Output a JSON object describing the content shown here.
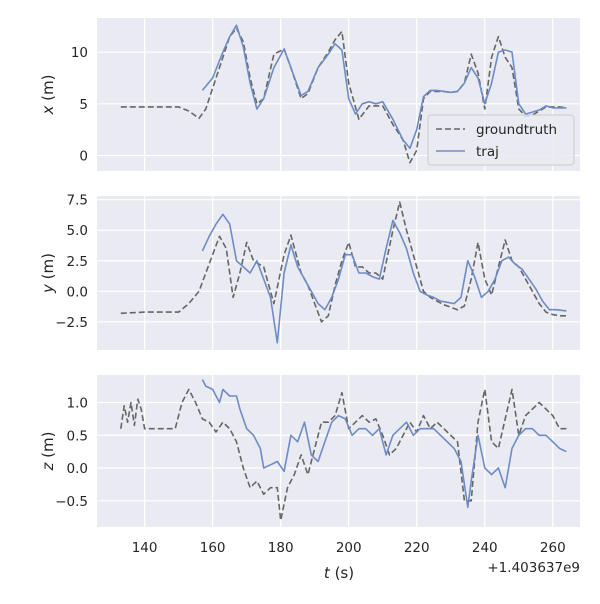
{
  "chart_data": {
    "type": "line",
    "xlabel": "t (s)",
    "x_offset_label": "+1.403637e9",
    "xlim": [
      126,
      268
    ],
    "x_ticks": [
      140,
      160,
      180,
      200,
      220,
      240,
      260
    ],
    "grid": true,
    "legend": {
      "placement": "lower-right",
      "panel": "x",
      "entries": [
        "groundtruth",
        "traj"
      ]
    },
    "colors": {
      "groundtruth": "#666666",
      "traj": "#6d8cc6",
      "panel_bg": "#eaeaf2",
      "grid": "#ffffff"
    },
    "panels": [
      {
        "ylabel": "x (m)",
        "ylim": [
          -1.5,
          13.3
        ],
        "y_ticks": [
          0,
          5,
          10
        ],
        "y_tick_labels": [
          "0",
          "5",
          "10"
        ],
        "series": [
          {
            "name": "groundtruth",
            "style": "dashed",
            "x": [
              133,
              140,
              150,
              153,
              156,
              158,
              160,
              163,
              165,
              167,
              169,
              171,
              173,
              175,
              178,
              181,
              183,
              186,
              188,
              191,
              194,
              196,
              198,
              200,
              203,
              206,
              210,
              213,
              216,
              218,
              220,
              222,
              224,
              226,
              228,
              230,
              232,
              234,
              236,
              238,
              240,
              242,
              244,
              246,
              248,
              250,
              252,
              254,
              256,
              258,
              260,
              262,
              264
            ],
            "y": [
              4.7,
              4.7,
              4.7,
              4.3,
              3.6,
              4.5,
              6.5,
              9.5,
              11.5,
              12.3,
              11,
              7.5,
              5,
              5.5,
              9.8,
              10.3,
              8.5,
              5.5,
              6,
              8.5,
              10,
              11.2,
              12,
              7,
              3.5,
              4.8,
              4.8,
              3,
              1.5,
              -0.7,
              0.5,
              5.5,
              6.2,
              6.2,
              6.2,
              6.1,
              6.2,
              7,
              9.8,
              8,
              4.5,
              9.5,
              11.5,
              9.5,
              8.5,
              4.5,
              3.8,
              3.9,
              4.3,
              4.7,
              4.7,
              4.7,
              4.6
            ]
          },
          {
            "name": "traj",
            "style": "solid",
            "x": [
              157,
              160,
              163,
              165,
              167,
              169,
              171,
              173,
              175,
              178,
              181,
              183,
              186,
              188,
              191,
              194,
              196,
              198,
              200,
              202,
              204,
              206,
              208,
              210,
              213,
              216,
              218,
              220,
              222,
              224,
              226,
              228,
              230,
              232,
              234,
              236,
              238,
              240,
              242,
              244,
              246,
              248,
              250,
              252,
              254,
              256,
              258,
              260,
              262,
              264
            ],
            "y": [
              6.3,
              7.5,
              10,
              11.5,
              12.6,
              10.5,
              7,
              4.5,
              5.5,
              8.5,
              10.3,
              8.5,
              5.8,
              6.2,
              8.5,
              9.8,
              10.8,
              10.2,
              5.5,
              4,
              5,
              5.2,
              5,
              5.2,
              3.5,
              1.5,
              0.7,
              2.5,
              5.7,
              6.3,
              6.3,
              6.2,
              6.1,
              6.2,
              7,
              8.5,
              7.5,
              5,
              7,
              10,
              10.2,
              10,
              5,
              4,
              4.2,
              4.4,
              4.8,
              4.6,
              4.6,
              4.6
            ]
          }
        ]
      },
      {
        "ylabel": "y (m)",
        "ylim": [
          -4.8,
          7.8
        ],
        "y_ticks": [
          -2.5,
          0,
          2.5,
          5,
          7.5
        ],
        "y_tick_labels": [
          "−2.5",
          "0.0",
          "2.5",
          "5.0",
          "7.5"
        ],
        "series": [
          {
            "name": "groundtruth",
            "style": "dashed",
            "x": [
              133,
              140,
              150,
              153,
              156,
              158,
              160,
              162,
              164,
              166,
              168,
              170,
              172,
              175,
              178,
              181,
              183,
              186,
              188,
              190,
              192,
              194,
              196,
              198,
              200,
              202,
              204,
              206,
              208,
              210,
              213,
              215,
              217,
              220,
              222,
              224,
              226,
              228,
              230,
              232,
              234,
              236,
              238,
              240,
              242,
              244,
              246,
              248,
              250,
              252,
              254,
              256,
              258,
              260,
              262,
              264
            ],
            "y": [
              -1.8,
              -1.7,
              -1.7,
              -1,
              0,
              1.5,
              3,
              4.5,
              3.5,
              -0.5,
              1.5,
              4,
              2.5,
              2,
              -1,
              3,
              4.6,
              1.5,
              0.5,
              -1,
              -2.5,
              -2,
              0.5,
              2.5,
              4,
              2,
              2,
              1.5,
              1.5,
              1,
              5,
              7.3,
              5,
              2,
              0,
              -0.5,
              -0.8,
              -1.1,
              -1.3,
              -1.5,
              -1.2,
              1,
              4,
              1,
              -0.3,
              2,
              4.2,
              2.5,
              2,
              1,
              0,
              -1,
              -1.7,
              -1.9,
              -2,
              -2
            ]
          },
          {
            "name": "traj",
            "style": "solid",
            "x": [
              157,
              159,
              161,
              163,
              165,
              167,
              169,
              171,
              173,
              175,
              177,
              179,
              181,
              183,
              185,
              187,
              189,
              191,
              193,
              195,
              197,
              199,
              201,
              203,
              205,
              207,
              209,
              211,
              213,
              215,
              217,
              219,
              221,
              223,
              225,
              227,
              229,
              231,
              233,
              235,
              237,
              239,
              241,
              243,
              245,
              247,
              249,
              251,
              253,
              255,
              257,
              259,
              261,
              264
            ],
            "y": [
              3.3,
              4.5,
              5.5,
              6.3,
              5.5,
              2.5,
              2,
              1.5,
              2.5,
              1,
              -0.5,
              -4.2,
              1.5,
              3.8,
              2,
              1,
              0,
              -1,
              -1.5,
              -0.5,
              1,
              3,
              3,
              1.5,
              1.5,
              1.2,
              1,
              3.5,
              5.8,
              4.8,
              3.5,
              1.5,
              0,
              -0.3,
              -0.5,
              -0.8,
              -0.9,
              -1,
              -0.5,
              2.5,
              1.2,
              -0.5,
              0,
              1,
              2.5,
              2.8,
              2.2,
              1.8,
              1,
              0.2,
              -0.8,
              -1.5,
              -1.5,
              -1.6
            ]
          }
        ]
      },
      {
        "ylabel": "z (m)",
        "ylim": [
          -0.9,
          1.42
        ],
        "y_ticks": [
          -0.5,
          0,
          0.5,
          1
        ],
        "y_tick_labels": [
          "−0.5",
          "0.0",
          "0.5",
          "1.0"
        ],
        "series": [
          {
            "name": "groundtruth",
            "style": "dashed",
            "x": [
              133,
              134,
              135,
              136,
              137,
              138,
              139,
              140,
              145,
              149,
              151,
              153,
              155,
              157,
              159,
              161,
              163,
              165,
              167,
              169,
              171,
              173,
              175,
              177,
              179,
              180,
              182,
              184,
              186,
              188,
              190,
              192,
              194,
              196,
              198,
              200,
              202,
              204,
              206,
              208,
              210,
              212,
              214,
              216,
              218,
              220,
              222,
              224,
              226,
              228,
              230,
              232,
              234,
              236,
              238,
              240,
              242,
              244,
              246,
              248,
              250,
              252,
              254,
              256,
              258,
              260,
              262,
              264
            ],
            "y": [
              0.6,
              0.95,
              0.7,
              1.0,
              0.65,
              1.05,
              0.9,
              0.6,
              0.6,
              0.6,
              1.0,
              1.2,
              1.0,
              0.75,
              0.7,
              0.55,
              0.7,
              0.6,
              0.4,
              0.0,
              -0.3,
              -0.2,
              -0.4,
              -0.3,
              -0.3,
              -0.8,
              -0.3,
              -0.1,
              0.2,
              -0.1,
              0.3,
              0.7,
              0.7,
              0.8,
              1.15,
              0.6,
              0.7,
              0.8,
              0.7,
              0.75,
              0.5,
              0.2,
              0.3,
              0.5,
              0.7,
              0.55,
              0.8,
              0.6,
              0.7,
              0.6,
              0.5,
              0.4,
              -0.5,
              -0.5,
              0.7,
              1.2,
              0.4,
              0.3,
              0.75,
              1.2,
              0.5,
              0.8,
              0.9,
              1.0,
              0.9,
              0.8,
              0.6,
              0.6
            ]
          },
          {
            "name": "traj",
            "style": "solid",
            "x": [
              157,
              158,
              160,
              162,
              163,
              165,
              167,
              168,
              170,
              172,
              174,
              175,
              177,
              179,
              181,
              183,
              185,
              187,
              189,
              191,
              193,
              195,
              197,
              199,
              201,
              203,
              205,
              207,
              209,
              211,
              213,
              215,
              217,
              219,
              221,
              223,
              225,
              227,
              229,
              231,
              233,
              235,
              236,
              238,
              240,
              242,
              244,
              246,
              248,
              250,
              252,
              254,
              256,
              258,
              260,
              262,
              264
            ],
            "y": [
              1.35,
              1.25,
              1.2,
              1.0,
              1.2,
              1.1,
              1.1,
              0.9,
              0.6,
              0.5,
              0.3,
              0.0,
              0.05,
              0.1,
              -0.05,
              0.5,
              0.4,
              0.7,
              0.2,
              0.1,
              0.4,
              0.7,
              0.8,
              0.75,
              0.5,
              0.6,
              0.6,
              0.5,
              0.6,
              0.2,
              0.5,
              0.6,
              0.7,
              0.5,
              0.6,
              0.6,
              0.6,
              0.5,
              0.4,
              0.3,
              0.1,
              -0.6,
              -0.2,
              0.5,
              0.0,
              -0.1,
              0.0,
              -0.3,
              0.3,
              0.5,
              0.6,
              0.6,
              0.5,
              0.5,
              0.4,
              0.3,
              0.25
            ]
          }
        ]
      }
    ]
  }
}
